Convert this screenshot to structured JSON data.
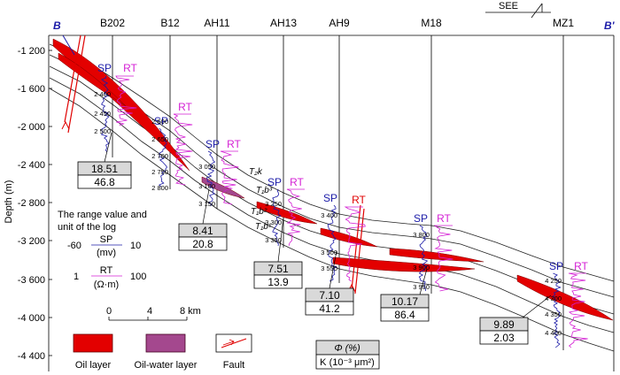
{
  "section": {
    "start": "B",
    "end": "B'",
    "direction": "SEE"
  },
  "depth_axis": {
    "label": "Depth (m)",
    "ticks": [
      "-1 200",
      "-1 600",
      "-2 000",
      "-2 400",
      "-2 800",
      "-3 200",
      "-3 600",
      "-4 000",
      "-4 400"
    ]
  },
  "log_labels": {
    "sp": "SP",
    "rt": "RT"
  },
  "wells": [
    {
      "name": "B202",
      "depths": [
        "2 400",
        "2 450",
        "2 500"
      ]
    },
    {
      "name": "B12",
      "depths": [
        "2 600",
        "2 650",
        "2 700",
        "2 750",
        "2 800"
      ]
    },
    {
      "name": "AH11",
      "depths": [
        "3 050",
        "3 100",
        "3 150"
      ]
    },
    {
      "name": "AH13",
      "depths": [
        "3 250",
        "3 300",
        "3 350"
      ]
    },
    {
      "name": "AH9",
      "depths": [
        "3 400",
        "3 500",
        "3 550"
      ]
    },
    {
      "name": "M18",
      "depths": [
        "3 800",
        "3 900",
        "3 950"
      ]
    },
    {
      "name": "MZ1",
      "depths": [
        "4 250",
        "4 300",
        "4 350",
        "4 400"
      ]
    }
  ],
  "formations": [
    "T₂k",
    "T₁b³",
    "T₁b²",
    "T₁b¹"
  ],
  "property_boxes": [
    {
      "phi": "18.51",
      "k": "46.8"
    },
    {
      "phi": "8.41",
      "k": "20.8"
    },
    {
      "phi": "7.51",
      "k": "13.9"
    },
    {
      "phi": "7.10",
      "k": "41.2"
    },
    {
      "phi": "10.17",
      "k": "86.4"
    },
    {
      "phi": "9.89",
      "k": "2.03"
    }
  ],
  "log_range_legend": {
    "title_line1": "The range value and",
    "title_line2": "unit of the log",
    "sp": {
      "min": "-60",
      "label": "SP",
      "max": "10",
      "unit": "(mv)"
    },
    "rt": {
      "min": "1",
      "label": "RT",
      "max": "100",
      "unit": "(Ω·m)"
    }
  },
  "scale_bar": {
    "labels": [
      "0",
      "4",
      "8 km"
    ]
  },
  "legend": {
    "oil": "Oil layer",
    "oil_water": "Oil-water layer",
    "fault": "Fault"
  },
  "property_key": {
    "phi": "Φ (%)",
    "k": "K (10⁻³ μm²)"
  },
  "colors": {
    "oil": "#e30000",
    "oil_water": "#a4488e",
    "sp": "#1c1ca8",
    "rt": "#d41fd4",
    "fault": "#e00000",
    "section_end": "#1c1ca8"
  }
}
